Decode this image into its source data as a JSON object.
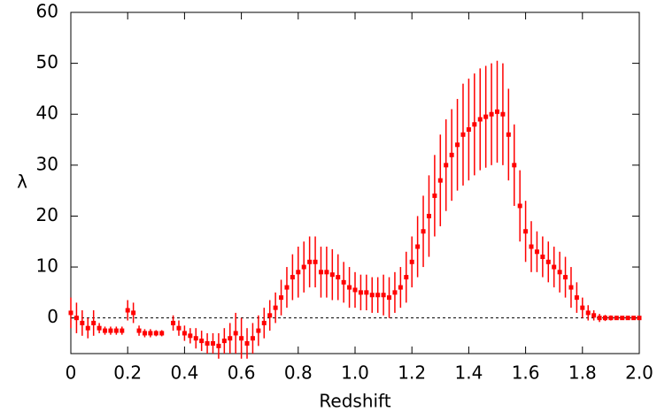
{
  "chart_data": {
    "type": "errorbar",
    "x_label": "Redshift",
    "y_label": "λ",
    "xlim": [
      0,
      2
    ],
    "ylim": [
      -7,
      60
    ],
    "xticks": [
      0,
      0.2,
      0.4,
      0.6,
      0.8,
      {
        "value": 1,
        "label": "1.0"
      },
      1.2,
      1.4,
      1.6,
      1.8,
      {
        "value": 2,
        "label": "2.0"
      }
    ],
    "yticks": [
      0,
      10,
      20,
      30,
      40,
      50,
      60
    ],
    "reference_line": 0,
    "series": [
      {
        "color": "#ff0000",
        "x": [
          0.0,
          0.02,
          0.04,
          0.06,
          0.08,
          0.1,
          0.12,
          0.14,
          0.16,
          0.18,
          0.2,
          0.22,
          0.24,
          0.26,
          0.28,
          0.3,
          0.32,
          0.36,
          0.38,
          0.4,
          0.42,
          0.44,
          0.46,
          0.48,
          0.5,
          0.52,
          0.54,
          0.56,
          0.58,
          0.6,
          0.62,
          0.64,
          0.66,
          0.68,
          0.7,
          0.72,
          0.74,
          0.76,
          0.78,
          0.8,
          0.82,
          0.84,
          0.86,
          0.88,
          0.9,
          0.92,
          0.94,
          0.96,
          0.98,
          1.0,
          1.02,
          1.04,
          1.06,
          1.08,
          1.1,
          1.12,
          1.14,
          1.16,
          1.18,
          1.2,
          1.22,
          1.24,
          1.26,
          1.28,
          1.3,
          1.32,
          1.34,
          1.36,
          1.38,
          1.4,
          1.42,
          1.44,
          1.46,
          1.48,
          1.5,
          1.52,
          1.54,
          1.56,
          1.58,
          1.6,
          1.62,
          1.64,
          1.66,
          1.68,
          1.7,
          1.72,
          1.74,
          1.76,
          1.78,
          1.8,
          1.82,
          1.84,
          1.86,
          1.88,
          1.9,
          1.92,
          1.94,
          1.96,
          1.98,
          2.0
        ],
        "values": [
          1,
          0,
          -1,
          -2,
          -1,
          -2,
          -2.5,
          -2.5,
          -2.5,
          -2.5,
          1.5,
          1,
          -2.5,
          -3,
          -3,
          -3,
          -3,
          -1,
          -2,
          -3,
          -3.5,
          -4,
          -4.5,
          -5,
          -5,
          -5.5,
          -4.5,
          -4,
          -3,
          -4,
          -5,
          -4,
          -2.5,
          -1,
          0.5,
          2,
          4,
          6,
          8,
          9,
          10,
          11,
          11,
          9,
          9,
          8.5,
          8,
          7,
          6,
          5.5,
          5,
          5,
          4.5,
          4.5,
          4.5,
          4,
          5,
          6,
          8,
          11,
          14,
          17,
          20,
          24,
          27,
          30,
          32,
          34,
          36,
          37,
          38,
          39,
          39.5,
          40,
          40.5,
          40,
          36,
          30,
          22,
          17,
          14,
          13,
          12,
          11,
          10,
          9,
          8,
          6,
          4,
          2,
          1,
          0.5,
          0,
          0,
          0,
          0,
          0,
          0,
          0,
          0
        ],
        "errors": [
          3,
          3,
          2.5,
          2,
          2.5,
          1,
          0.8,
          0.8,
          0.8,
          0.8,
          2,
          2,
          1,
          0.8,
          0.8,
          0.6,
          0.6,
          1.5,
          1.5,
          1.5,
          1.5,
          2,
          2,
          2,
          2,
          2.5,
          2.5,
          3,
          4,
          4,
          3,
          3,
          3,
          3,
          3,
          3,
          3.5,
          4,
          4.5,
          5,
          5,
          5,
          5,
          5,
          5,
          5,
          4.5,
          4,
          4,
          3.5,
          3.5,
          3.5,
          3.5,
          3.5,
          4,
          4,
          4,
          4,
          5,
          5,
          6,
          7,
          8,
          8,
          9,
          9,
          9,
          9,
          10,
          10,
          10,
          10,
          10,
          10,
          10,
          10,
          9,
          8,
          7,
          6,
          5,
          4,
          4,
          4,
          4,
          4,
          4,
          4,
          3,
          2,
          1.5,
          1,
          0.8,
          0.6,
          0.5,
          0.4,
          0.3,
          0.3,
          0.2,
          0.2
        ]
      }
    ]
  }
}
